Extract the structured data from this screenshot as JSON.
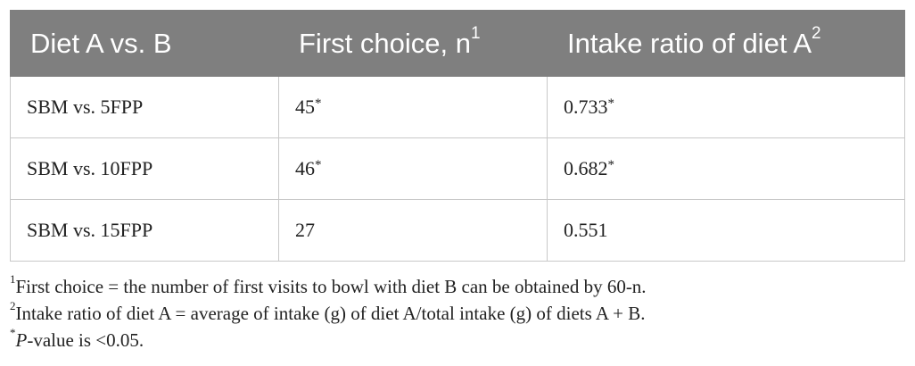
{
  "table": {
    "headers": [
      {
        "text": "Diet A vs. B",
        "sup": ""
      },
      {
        "text": "First choice, n",
        "sup": "1"
      },
      {
        "text": "Intake ratio of diet A",
        "sup": "2"
      }
    ],
    "rows": [
      {
        "diet": "SBM vs. 5FPP",
        "first_choice": "45",
        "first_choice_mark": "*",
        "intake_ratio": "0.733",
        "intake_ratio_mark": "*"
      },
      {
        "diet": "SBM vs. 10FPP",
        "first_choice": "46",
        "first_choice_mark": "*",
        "intake_ratio": "0.682",
        "intake_ratio_mark": "*"
      },
      {
        "diet": "SBM vs. 15FPP",
        "first_choice": "27",
        "first_choice_mark": "",
        "intake_ratio": "0.551",
        "intake_ratio_mark": ""
      }
    ]
  },
  "footnotes": [
    {
      "marker": "1",
      "lead": "",
      "text": "First choice = the number of first visits to bowl with diet B can be obtained by 60-n."
    },
    {
      "marker": "2",
      "lead": "",
      "text": "Intake ratio of diet A = average of intake (g) of diet A/total intake (g) of diets A + B."
    },
    {
      "marker": "*",
      "lead": "P",
      "text": "-value is <0.05."
    }
  ]
}
